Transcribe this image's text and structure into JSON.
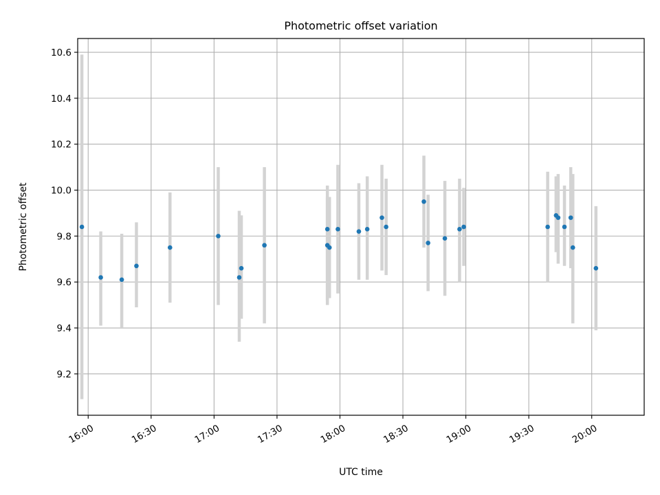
{
  "chart_data": {
    "type": "scatter",
    "title": "Photometric offset variation",
    "xlabel": "UTC time",
    "ylabel": "Photometric offset",
    "grid": true,
    "xlim": [
      "15:55",
      "20:25"
    ],
    "ylim": [
      9.02,
      10.66
    ],
    "x_ticks": [
      "16:00",
      "16:30",
      "17:00",
      "17:30",
      "18:00",
      "18:30",
      "19:00",
      "19:30",
      "20:00"
    ],
    "y_ticks": [
      "9.2",
      "9.4",
      "9.6",
      "9.8",
      "10.0",
      "10.2",
      "10.4",
      "10.6"
    ],
    "colors": {
      "points": "#1f77b4",
      "errorbars": "#d3d3d3",
      "grid": "#b0b0b0"
    },
    "points": [
      {
        "x": "15:57",
        "y": 9.84,
        "ylow": 9.09,
        "yhigh": 10.59
      },
      {
        "x": "16:06",
        "y": 9.62,
        "ylow": 9.41,
        "yhigh": 9.82
      },
      {
        "x": "16:16",
        "y": 9.61,
        "ylow": 9.4,
        "yhigh": 9.81
      },
      {
        "x": "16:23",
        "y": 9.67,
        "ylow": 9.49,
        "yhigh": 9.86
      },
      {
        "x": "16:39",
        "y": 9.75,
        "ylow": 9.51,
        "yhigh": 9.99
      },
      {
        "x": "17:02",
        "y": 9.8,
        "ylow": 9.5,
        "yhigh": 10.1
      },
      {
        "x": "17:12",
        "y": 9.62,
        "ylow": 9.34,
        "yhigh": 9.91
      },
      {
        "x": "17:13",
        "y": 9.66,
        "ylow": 9.44,
        "yhigh": 9.89
      },
      {
        "x": "17:24",
        "y": 9.76,
        "ylow": 9.42,
        "yhigh": 10.1
      },
      {
        "x": "17:54",
        "y": 9.83,
        "ylow": 9.5,
        "yhigh": 10.02
      },
      {
        "x": "17:54",
        "y": 9.76,
        "ylow": 9.52,
        "yhigh": 9.97
      },
      {
        "x": "17:55",
        "y": 9.75,
        "ylow": 9.53,
        "yhigh": 9.97
      },
      {
        "x": "17:59",
        "y": 9.83,
        "ylow": 9.55,
        "yhigh": 10.11
      },
      {
        "x": "18:09",
        "y": 9.82,
        "ylow": 9.61,
        "yhigh": 10.03
      },
      {
        "x": "18:13",
        "y": 9.83,
        "ylow": 9.61,
        "yhigh": 10.06
      },
      {
        "x": "18:20",
        "y": 9.88,
        "ylow": 9.65,
        "yhigh": 10.11
      },
      {
        "x": "18:22",
        "y": 9.84,
        "ylow": 9.63,
        "yhigh": 10.05
      },
      {
        "x": "18:40",
        "y": 9.95,
        "ylow": 9.75,
        "yhigh": 10.15
      },
      {
        "x": "18:42",
        "y": 9.77,
        "ylow": 9.56,
        "yhigh": 9.98
      },
      {
        "x": "18:50",
        "y": 9.79,
        "ylow": 9.54,
        "yhigh": 10.04
      },
      {
        "x": "18:57",
        "y": 9.83,
        "ylow": 9.6,
        "yhigh": 10.05
      },
      {
        "x": "18:59",
        "y": 9.84,
        "ylow": 9.67,
        "yhigh": 10.01
      },
      {
        "x": "19:39",
        "y": 9.84,
        "ylow": 9.6,
        "yhigh": 10.08
      },
      {
        "x": "19:43",
        "y": 9.89,
        "ylow": 9.73,
        "yhigh": 10.06
      },
      {
        "x": "19:44",
        "y": 9.88,
        "ylow": 9.68,
        "yhigh": 10.07
      },
      {
        "x": "19:47",
        "y": 9.84,
        "ylow": 9.67,
        "yhigh": 10.02
      },
      {
        "x": "19:50",
        "y": 9.88,
        "ylow": 9.66,
        "yhigh": 10.1
      },
      {
        "x": "19:51",
        "y": 9.75,
        "ylow": 9.42,
        "yhigh": 10.07
      },
      {
        "x": "20:02",
        "y": 9.66,
        "ylow": 9.39,
        "yhigh": 9.93
      }
    ]
  }
}
